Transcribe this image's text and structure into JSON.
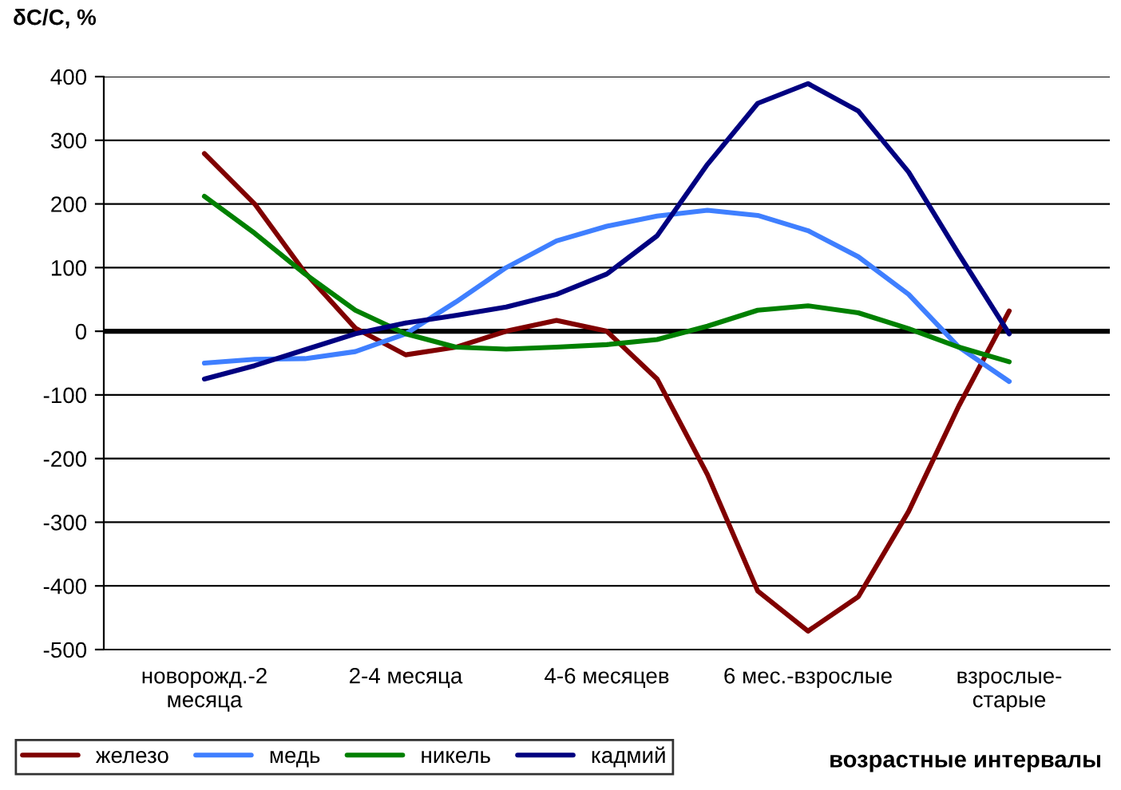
{
  "chart_data": {
    "type": "line",
    "ylabel": "δC/C, %",
    "xlabel": "возрастные интервалы",
    "categories": [
      "новорожд.-2\nмесяца",
      null,
      null,
      null,
      "2-4 месяца",
      null,
      null,
      null,
      "4-6 месяцев",
      null,
      null,
      null,
      "6 мес.-взрослые",
      null,
      null,
      null,
      "взрослые-\nстарые"
    ],
    "series": [
      {
        "name": "железо",
        "color": "#800000",
        "values": [
          279,
          200,
          92,
          5,
          -37,
          -25,
          0,
          17,
          0,
          -75,
          -225,
          -408,
          -471,
          -417,
          -283,
          -117,
          32
        ]
      },
      {
        "name": "медь",
        "color": "#3f7fff",
        "values": [
          -50,
          -44,
          -43,
          -32,
          -4,
          46,
          100,
          142,
          165,
          181,
          190,
          182,
          158,
          117,
          58,
          -25,
          -79
        ]
      },
      {
        "name": "никель",
        "color": "#008000",
        "values": [
          212,
          154,
          90,
          33,
          -4,
          -25,
          -28,
          -25,
          -21,
          -13,
          8,
          33,
          40,
          29,
          4,
          -25,
          -48
        ]
      },
      {
        "name": "кадмий",
        "color": "#000080",
        "values": [
          -75,
          -54,
          -29,
          -4,
          13,
          25,
          38,
          58,
          90,
          150,
          262,
          358,
          389,
          346,
          250,
          121,
          -4
        ]
      }
    ],
    "ylim": [
      -500,
      400
    ],
    "yticks": [
      -500,
      -400,
      -300,
      -200,
      -100,
      0,
      100,
      200,
      300,
      400
    ],
    "ref_lines": [
      {
        "axis": "y",
        "value": 0,
        "color": "#000000"
      }
    ],
    "grid": "y",
    "legend": "bottom left",
    "marker": "none",
    "line_style": "solid"
  }
}
